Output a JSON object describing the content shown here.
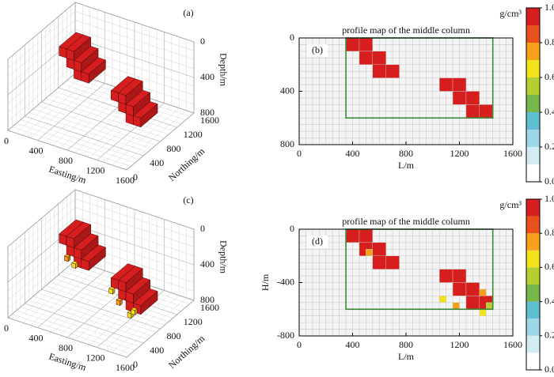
{
  "chart_data": [
    {
      "type": "voxel3d",
      "label": "(a)",
      "xlabel": "Easting/m",
      "ylabel": "Northing/m",
      "zlabel": "Depth/m",
      "xlim": [
        0,
        1600
      ],
      "ylim": [
        0,
        1600
      ],
      "zlim": [
        0,
        800
      ],
      "xticks": [
        0,
        400,
        800,
        1200,
        1600
      ],
      "yticks": [
        0,
        400,
        800,
        1200,
        1600
      ],
      "zticks": [
        0,
        400,
        800
      ],
      "cells": {
        "x": [
          350,
          450,
          450,
          550,
          550,
          650,
          1050,
          1150,
          1150,
          1250,
          1250,
          1350
        ],
        "x2": [
          450,
          550,
          550,
          650,
          650,
          750,
          1150,
          1250,
          1250,
          1350,
          1350,
          1450
        ],
        "y": [
          600,
          600,
          600,
          600,
          600,
          600,
          600,
          600,
          600,
          600,
          600,
          600
        ],
        "y2": [
          1000,
          1000,
          1000,
          1000,
          1000,
          1000,
          1000,
          1000,
          1000,
          1000,
          1000,
          1000
        ],
        "z": [
          0,
          0,
          100,
          100,
          200,
          200,
          300,
          300,
          400,
          400,
          500,
          500
        ],
        "z2": [
          100,
          100,
          200,
          200,
          300,
          300,
          400,
          400,
          500,
          500,
          600,
          600
        ],
        "values": [
          1,
          1,
          1,
          1,
          1,
          1,
          1,
          1,
          1,
          1,
          1,
          1
        ]
      }
    },
    {
      "type": "heatmap",
      "title": "profile map of the middle column",
      "label": "(b)",
      "xlabel": "L/m",
      "xlim": [
        0,
        1600
      ],
      "ylim": [
        0,
        800
      ],
      "yinvert": true,
      "xticks": [
        0,
        400,
        800,
        1200,
        1600
      ],
      "yticks": [
        0,
        400,
        800
      ],
      "cells": {
        "x": [
          350,
          450,
          450,
          550,
          550,
          650,
          1050,
          1150,
          1150,
          1250,
          1250,
          1350
        ],
        "x2": [
          450,
          550,
          550,
          650,
          650,
          750,
          1150,
          1250,
          1250,
          1350,
          1350,
          1450
        ],
        "y": [
          0,
          0,
          100,
          100,
          200,
          200,
          300,
          300,
          400,
          400,
          500,
          500
        ],
        "y2": [
          100,
          100,
          200,
          200,
          300,
          300,
          400,
          400,
          500,
          500,
          600,
          600
        ],
        "values": [
          1,
          1,
          1,
          1,
          1,
          1,
          1,
          1,
          1,
          1,
          1,
          1
        ]
      },
      "outline": {
        "x": [
          350,
          1450
        ],
        "y": [
          0,
          600
        ],
        "color": "#3a8a3a"
      },
      "colorbar": {
        "label": "g/cm³",
        "lim": [
          0,
          1
        ],
        "ticks": [
          {
            "value": 0,
            "label": "0.0"
          },
          {
            "value": 0.2,
            "label": "0.2"
          },
          {
            "value": 0.4,
            "label": "0.4"
          },
          {
            "value": 0.6,
            "label": "0.6"
          },
          {
            "value": 0.8,
            "label": "0.8"
          },
          {
            "value": 1,
            "label": "1.0"
          }
        ],
        "colors": [
          "#ffffff",
          "#d2ecf4",
          "#9fd6e8",
          "#5fbdd4",
          "#78b64a",
          "#b6cf30",
          "#f2e21c",
          "#f5a21a",
          "#e9501d",
          "#d71e1e"
        ]
      }
    },
    {
      "type": "voxel3d",
      "label": "(c)",
      "xlabel": "Easting/m",
      "ylabel": "Northing/m",
      "zlabel": "Depth/m",
      "xlim": [
        0,
        1600
      ],
      "ylim": [
        0,
        1600
      ],
      "zlim": [
        0,
        800
      ],
      "xticks": [
        0,
        400,
        800,
        1200,
        1600
      ],
      "yticks": [
        0,
        400,
        800,
        1200,
        1600
      ],
      "zticks": [
        0,
        400,
        800
      ],
      "cells": {
        "x": [
          350,
          450,
          450,
          550,
          550,
          650,
          1050,
          1150,
          1150,
          1250,
          1250,
          1350,
          450,
          550,
          1050,
          1150,
          1350,
          1300
        ],
        "x2": [
          450,
          550,
          550,
          650,
          650,
          750,
          1150,
          1250,
          1250,
          1350,
          1350,
          1450,
          500,
          600,
          1100,
          1200,
          1400,
          1350
        ],
        "y": [
          600,
          600,
          600,
          600,
          600,
          600,
          600,
          600,
          600,
          600,
          600,
          600,
          550,
          550,
          550,
          550,
          550,
          550
        ],
        "y2": [
          1000,
          1000,
          1000,
          1000,
          1000,
          1000,
          1000,
          1000,
          1000,
          1000,
          1000,
          1000,
          600,
          600,
          600,
          600,
          600,
          600
        ],
        "z": [
          0,
          0,
          100,
          100,
          200,
          200,
          300,
          300,
          400,
          400,
          500,
          500,
          200,
          250,
          400,
          500,
          550,
          600
        ],
        "z2": [
          100,
          100,
          200,
          200,
          300,
          300,
          400,
          400,
          500,
          500,
          600,
          600,
          250,
          300,
          450,
          550,
          600,
          650
        ],
        "values": [
          1,
          1,
          0.9,
          1,
          1,
          0.9,
          1,
          0.9,
          1,
          1,
          0.9,
          1,
          0.7,
          0.6,
          0.65,
          0.7,
          0.6,
          0.65
        ]
      }
    },
    {
      "type": "heatmap",
      "title": "profile map of the middle column",
      "label": "(d)",
      "xlabel": "L/m",
      "ylabel": "H/m",
      "xlim": [
        0,
        1600
      ],
      "ylim": [
        -800,
        0
      ],
      "xticks": [
        0,
        400,
        800,
        1200,
        1600
      ],
      "yticks": [
        0,
        -400,
        -800
      ],
      "cells": {
        "x": [
          350,
          450,
          450,
          550,
          550,
          650,
          1050,
          1150,
          1150,
          1250,
          1250,
          1350,
          500,
          1050,
          1150,
          1350,
          1400,
          1350
        ],
        "x2": [
          450,
          550,
          550,
          650,
          650,
          750,
          1150,
          1250,
          1250,
          1350,
          1350,
          1450,
          550,
          1100,
          1200,
          1400,
          1450,
          1400
        ],
        "y": [
          0,
          0,
          -100,
          -100,
          -200,
          -200,
          -300,
          -300,
          -400,
          -400,
          -500,
          -500,
          -150,
          -500,
          -550,
          -450,
          -550,
          -600
        ],
        "y2": [
          -100,
          -100,
          -200,
          -200,
          -300,
          -300,
          -400,
          -400,
          -500,
          -500,
          -600,
          -600,
          -200,
          -550,
          -600,
          -500,
          -600,
          -650
        ],
        "values": [
          1,
          1,
          1,
          1,
          1,
          1,
          1,
          0.9,
          1,
          1,
          0.9,
          1,
          0.7,
          0.6,
          0.7,
          0.75,
          0.55,
          0.65
        ]
      },
      "outline": {
        "x": [
          350,
          1450
        ],
        "y": [
          0,
          -600
        ],
        "color": "#3a8a3a"
      },
      "colorbar": {
        "label": "g/cm³",
        "lim": [
          0,
          1
        ],
        "ticks": [
          {
            "value": 0,
            "label": "0.0"
          },
          {
            "value": 0.2,
            "label": "0.2"
          },
          {
            "value": 0.4,
            "label": "0.4"
          },
          {
            "value": 0.6,
            "label": "0.6"
          },
          {
            "value": 0.8,
            "label": "0.8"
          },
          {
            "value": 1,
            "label": "1.0"
          }
        ],
        "colors": [
          "#ffffff",
          "#d2ecf4",
          "#9fd6e8",
          "#5fbdd4",
          "#78b64a",
          "#b6cf30",
          "#f2e21c",
          "#f5a21a",
          "#e9501d",
          "#d71e1e"
        ]
      }
    }
  ]
}
